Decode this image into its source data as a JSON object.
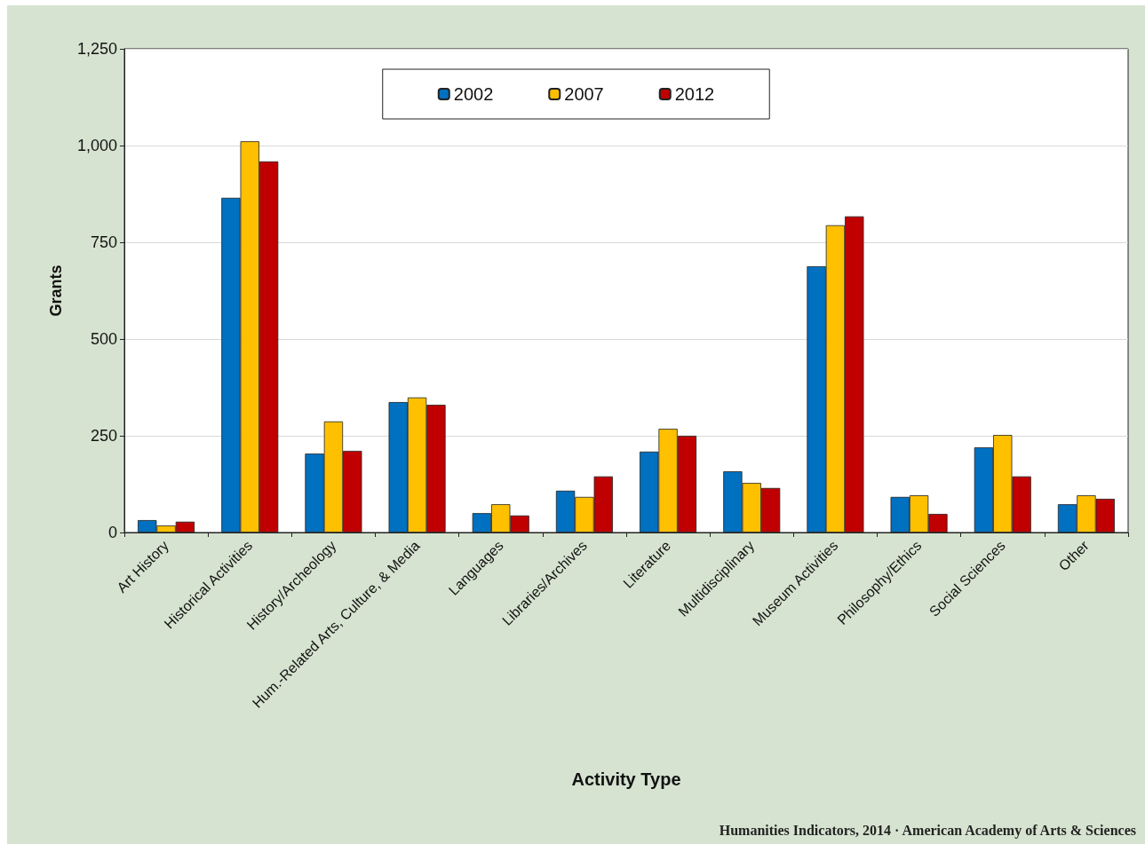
{
  "chart_data": {
    "type": "bar",
    "xlabel": "Activity Type",
    "ylabel": "Grants",
    "categories": [
      "Art History",
      "Historical Activities",
      "History/Archeology",
      "Hum.-Related Arts, Culture, & Media",
      "Languages",
      "Libraries/Archives",
      "Literature",
      "Multidisciplinary",
      "Museum Activities",
      "Philosophy/Ethics",
      "Social Sciences",
      "Other"
    ],
    "series": [
      {
        "name": "2002",
        "color": "#0070c0",
        "values": [
          32,
          865,
          204,
          337,
          50,
          108,
          209,
          158,
          688,
          92,
          220,
          73
        ]
      },
      {
        "name": "2007",
        "color": "#ffc000",
        "values": [
          18,
          1011,
          287,
          349,
          73,
          92,
          268,
          128,
          794,
          96,
          252,
          96
        ]
      },
      {
        "name": "2012",
        "color": "#c00000",
        "values": [
          28,
          959,
          211,
          330,
          44,
          145,
          250,
          115,
          817,
          48,
          145,
          87
        ]
      }
    ],
    "ylim": [
      0,
      1250
    ],
    "yticks": [
      {
        "value": 0,
        "label": "0"
      },
      {
        "value": 250,
        "label": "250"
      },
      {
        "value": 500,
        "label": "500"
      },
      {
        "value": 750,
        "label": "750"
      },
      {
        "value": 1000,
        "label": "1,000"
      },
      {
        "value": 1250,
        "label": "1,250"
      }
    ],
    "grid": "y",
    "legend": "top",
    "annotations": [
      "Humanities Indicators, 2014 · American Academy of Arts & Sciences"
    ]
  }
}
